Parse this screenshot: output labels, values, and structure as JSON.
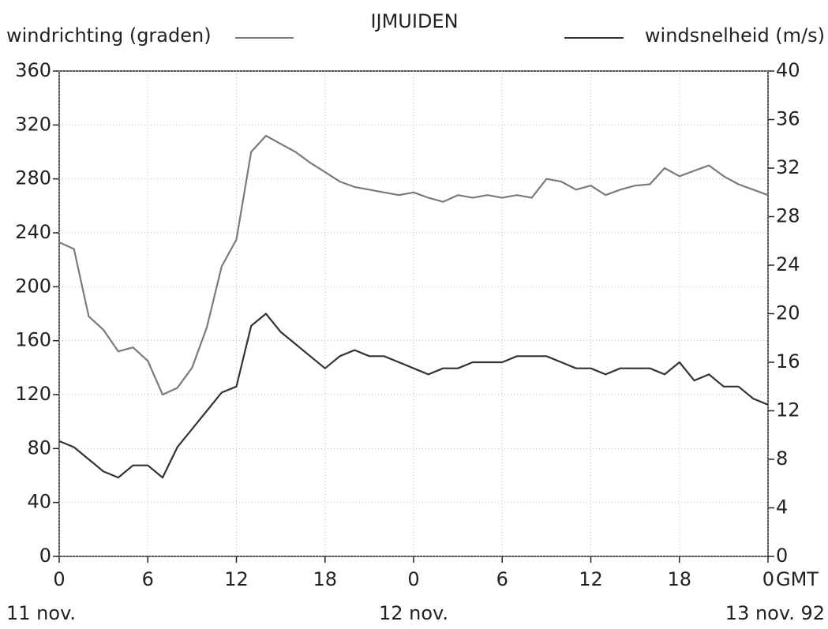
{
  "chart_data": {
    "type": "line",
    "title": "IJMUIDEN",
    "x": [
      0,
      1,
      2,
      3,
      4,
      5,
      6,
      7,
      8,
      9,
      10,
      11,
      12,
      13,
      14,
      15,
      16,
      17,
      18,
      19,
      20,
      21,
      22,
      23,
      24,
      25,
      26,
      27,
      28,
      29,
      30,
      31,
      32,
      33,
      34,
      35,
      36,
      37,
      38,
      39,
      40,
      41,
      42,
      43,
      44,
      45,
      46,
      47,
      48
    ],
    "xlim": [
      0,
      48
    ],
    "xticks": [
      0,
      6,
      12,
      18,
      {
        "value": 24,
        "label": "0"
      },
      {
        "value": 30,
        "label": "6"
      },
      {
        "value": 36,
        "label": "12"
      },
      {
        "value": 42,
        "label": "18"
      },
      {
        "value": 48,
        "label": "0"
      }
    ],
    "xlabel": "GMT",
    "date_labels": [
      "11 nov.",
      "12 nov.",
      "13 nov. 92"
    ],
    "ylim": [
      0,
      360
    ],
    "yticks": [
      0,
      40,
      80,
      120,
      160,
      200,
      240,
      280,
      320,
      360
    ],
    "y2lim": [
      0,
      40
    ],
    "y2ticks": [
      0,
      4,
      8,
      12,
      16,
      20,
      24,
      28,
      32,
      36,
      40
    ],
    "grid": true,
    "series": [
      {
        "name": "windrichting (graden)",
        "color": "#7a7a7a",
        "values": [
          233,
          228,
          178,
          168,
          152,
          155,
          145,
          120,
          125,
          140,
          170,
          215,
          235,
          300,
          312,
          306,
          300,
          292,
          285,
          278,
          274,
          272,
          270,
          268,
          270,
          266,
          263,
          268,
          266,
          268,
          266,
          268,
          266,
          280,
          278,
          272,
          275,
          268,
          272,
          275,
          276,
          288,
          282,
          286,
          290,
          282,
          276,
          272,
          268
        ]
      },
      {
        "name": "windsnelheid (m/s)",
        "color": "#333333",
        "axis": "y2",
        "values": [
          9.5,
          9,
          8,
          7,
          6.5,
          7.5,
          7.5,
          6.5,
          9,
          10.5,
          12,
          13.5,
          14,
          19,
          20,
          18.5,
          17.5,
          16.5,
          15.5,
          16.5,
          17,
          16.5,
          16.5,
          16,
          15.5,
          15,
          15.5,
          15.5,
          16,
          16,
          16,
          16.5,
          16.5,
          16.5,
          16,
          15.5,
          15.5,
          15,
          15.5,
          15.5,
          15.5,
          15,
          16,
          14.5,
          15,
          14,
          14,
          13,
          12.5
        ]
      }
    ]
  }
}
